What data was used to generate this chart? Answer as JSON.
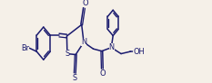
{
  "bg_color": "#f5f0e8",
  "line_color": "#1a1a6e",
  "line_width": 1.1,
  "font_size": 6.5,
  "figsize": [
    2.33,
    0.92
  ],
  "dpi": 100,
  "xlim": [
    0,
    10.0
  ],
  "ylim": [
    0.0,
    1.7
  ]
}
